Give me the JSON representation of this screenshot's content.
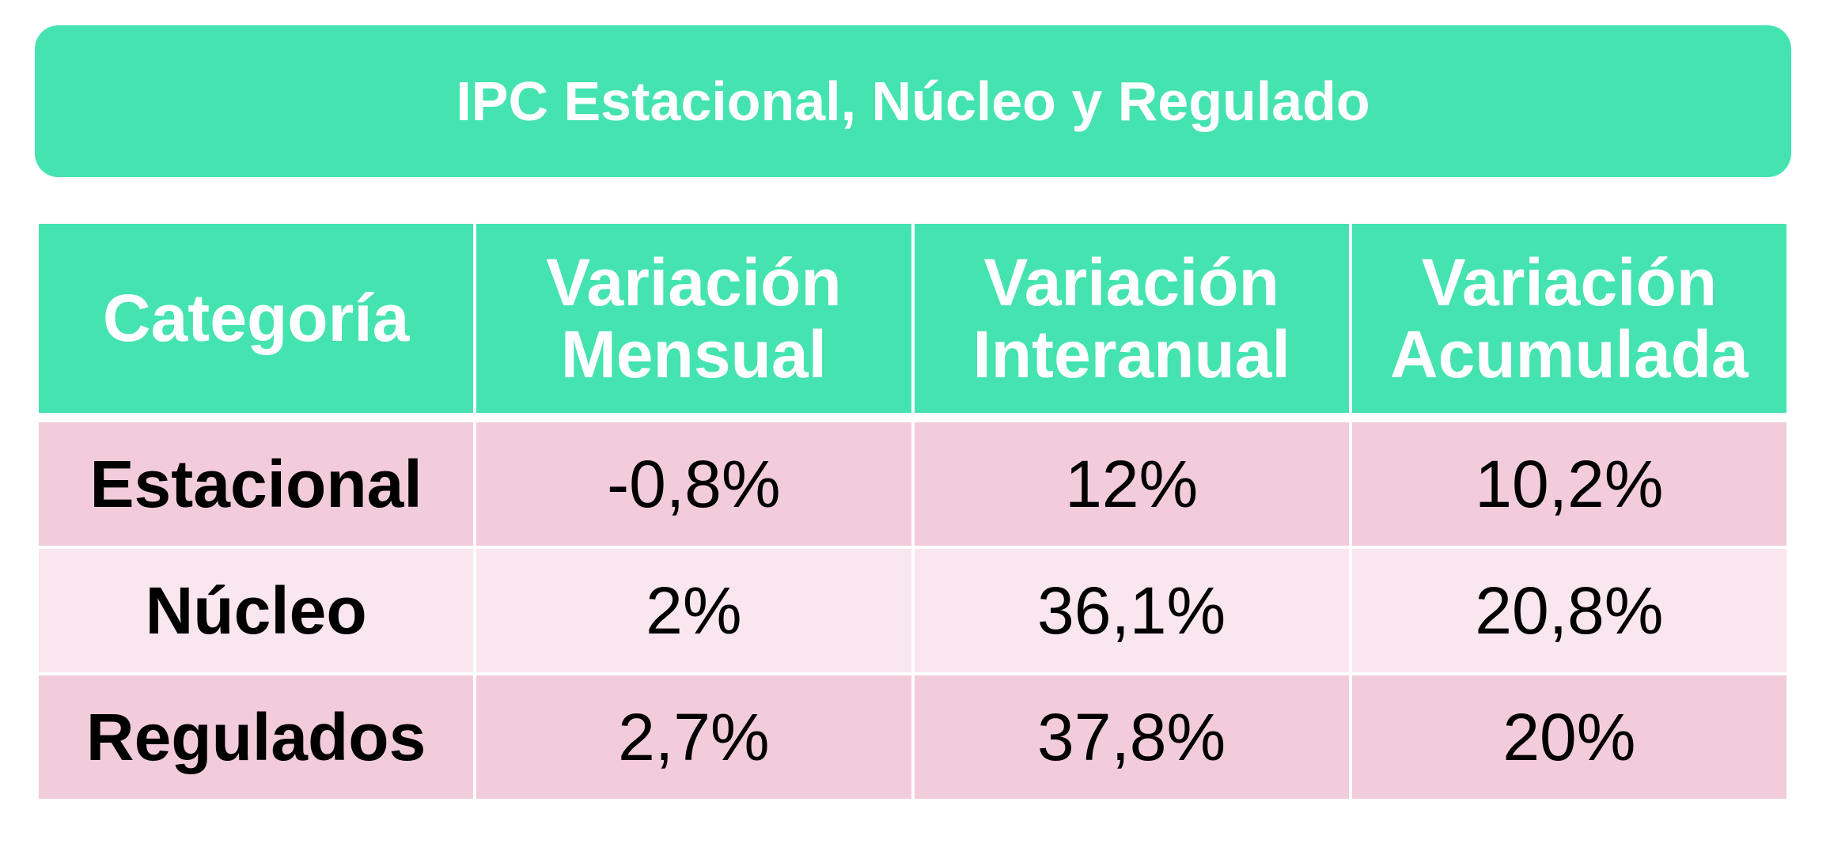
{
  "title": "IPC Estacional, Núcleo y Regulado",
  "colors": {
    "header": "#45E3B0",
    "row_dark": "#F2CCDB",
    "row_light": "#F9E6EE"
  },
  "table": {
    "headers": [
      "Categoría",
      "Variación Mensual",
      "Variación Interanual",
      "Variación Acumulada"
    ],
    "rows": [
      {
        "categoria": "Estacional",
        "mensual": "-0,8%",
        "interanual": "12%",
        "acumulada": "10,2%"
      },
      {
        "categoria": "Núcleo",
        "mensual": "2%",
        "interanual": "36,1%",
        "acumulada": "20,8%"
      },
      {
        "categoria": "Regulados",
        "mensual": "2,7%",
        "interanual": "37,8%",
        "acumulada": "20%"
      }
    ]
  }
}
